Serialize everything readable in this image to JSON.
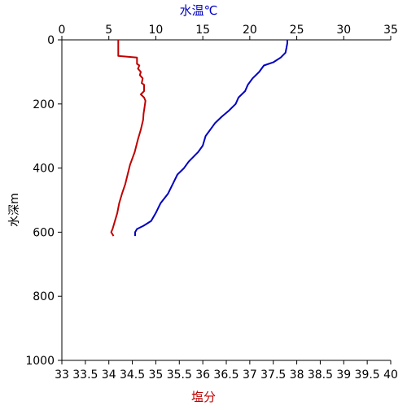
{
  "chart_data": {
    "type": "line",
    "title": "",
    "top_axis": {
      "label": "水温℃",
      "label_color": "#0000c0",
      "range": [
        0,
        35
      ],
      "ticks": [
        0,
        5,
        10,
        15,
        20,
        25,
        30,
        35
      ]
    },
    "bottom_axis": {
      "label": "塩分",
      "label_color": "#c00000",
      "range": [
        33,
        40
      ],
      "ticks": [
        33,
        33.5,
        34,
        34.5,
        35,
        35.5,
        36,
        36.5,
        37,
        37.5,
        38,
        38.5,
        39,
        39.5,
        40
      ]
    },
    "left_axis": {
      "label": "水深m",
      "range": [
        0,
        1000
      ],
      "inverted": true,
      "ticks": [
        0,
        200,
        400,
        600,
        800,
        1000
      ]
    },
    "grid": false,
    "series": [
      {
        "axis": "top",
        "color": "#0000c0",
        "points": [
          [
            24.0,
            0
          ],
          [
            24.0,
            10
          ],
          [
            23.9,
            25
          ],
          [
            23.8,
            40
          ],
          [
            23.3,
            55
          ],
          [
            22.5,
            70
          ],
          [
            21.5,
            80
          ],
          [
            21.0,
            100
          ],
          [
            20.3,
            120
          ],
          [
            19.8,
            140
          ],
          [
            19.5,
            160
          ],
          [
            18.8,
            180
          ],
          [
            18.5,
            200
          ],
          [
            17.8,
            220
          ],
          [
            17.0,
            240
          ],
          [
            16.3,
            260
          ],
          [
            15.8,
            280
          ],
          [
            15.3,
            300
          ],
          [
            15.0,
            330
          ],
          [
            14.5,
            350
          ],
          [
            13.5,
            380
          ],
          [
            13.0,
            400
          ],
          [
            12.3,
            420
          ],
          [
            11.8,
            450
          ],
          [
            11.3,
            480
          ],
          [
            10.5,
            510
          ],
          [
            10.0,
            540
          ],
          [
            9.5,
            565
          ],
          [
            8.7,
            580
          ],
          [
            8.0,
            590
          ],
          [
            7.8,
            600
          ],
          [
            7.8,
            612
          ]
        ]
      },
      {
        "axis": "bottom",
        "color": "#c00000",
        "points": [
          [
            34.2,
            0
          ],
          [
            34.2,
            50
          ],
          [
            34.6,
            55
          ],
          [
            34.6,
            75
          ],
          [
            34.65,
            80
          ],
          [
            34.62,
            90
          ],
          [
            34.68,
            100
          ],
          [
            34.66,
            110
          ],
          [
            34.72,
            120
          ],
          [
            34.7,
            135
          ],
          [
            34.75,
            140
          ],
          [
            34.75,
            160
          ],
          [
            34.68,
            170
          ],
          [
            34.75,
            180
          ],
          [
            34.78,
            190
          ],
          [
            34.76,
            210
          ],
          [
            34.74,
            230
          ],
          [
            34.73,
            250
          ],
          [
            34.68,
            280
          ],
          [
            34.62,
            310
          ],
          [
            34.55,
            350
          ],
          [
            34.45,
            390
          ],
          [
            34.4,
            420
          ],
          [
            34.35,
            450
          ],
          [
            34.28,
            480
          ],
          [
            34.22,
            510
          ],
          [
            34.18,
            540
          ],
          [
            34.12,
            570
          ],
          [
            34.08,
            590
          ],
          [
            34.05,
            600
          ],
          [
            34.1,
            612
          ]
        ]
      }
    ]
  }
}
